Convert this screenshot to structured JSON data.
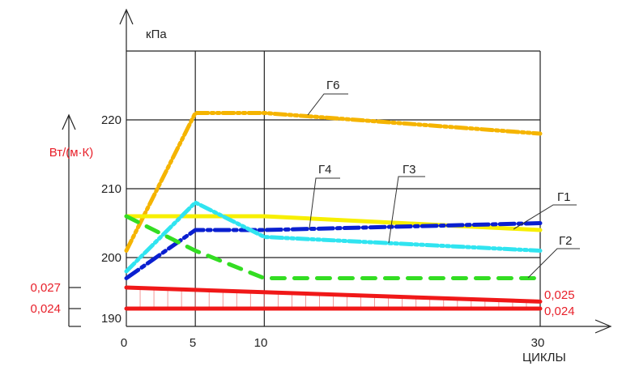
{
  "chart_data": {
    "type": "line",
    "xlabel": "ЦИКЛЫ",
    "ylabel": "кПа",
    "y2label": "Вт/(м·К)",
    "x_ticks": [
      "0",
      "5",
      "10",
      "30"
    ],
    "y_ticks": [
      "190",
      "200",
      "210",
      "220"
    ],
    "y2_ticks": [
      "0,027",
      "0,024"
    ],
    "xlim": [
      0,
      30
    ],
    "ylim": [
      190,
      230
    ],
    "grid": true,
    "series": [
      {
        "name": "Г6",
        "axis": "y",
        "color": "#f5b400",
        "style": "dash-dot-dot",
        "x": [
          0,
          5,
          10,
          30
        ],
        "y": [
          201,
          221,
          221,
          218
        ]
      },
      {
        "name": "Г1",
        "axis": "y",
        "color": "#f7ef00",
        "style": "solid",
        "x": [
          0,
          10,
          30
        ],
        "y": [
          206,
          206,
          204
        ]
      },
      {
        "name": "Г4",
        "axis": "y",
        "color": "#0a1fd0",
        "style": "dash-dot",
        "x": [
          0,
          5,
          10,
          30
        ],
        "y": [
          197,
          204,
          204,
          205
        ]
      },
      {
        "name": "Г3",
        "axis": "y",
        "color": "#30e4f0",
        "style": "dash-dot-dot",
        "x": [
          0,
          5,
          10,
          30
        ],
        "y": [
          198,
          208,
          203,
          201
        ]
      },
      {
        "name": "Г2",
        "axis": "y",
        "color": "#33dd22",
        "style": "dashed",
        "x": [
          0,
          5,
          10,
          30
        ],
        "y": [
          206,
          201,
          197,
          197
        ]
      }
    ],
    "secondary_series": [
      {
        "axis": "y2",
        "color": "#f01818",
        "x": [
          0,
          30
        ],
        "y": [
          0.027,
          0.025
        ],
        "end_label": "0,025"
      },
      {
        "axis": "y2",
        "color": "#f01818",
        "x": [
          0,
          30
        ],
        "y": [
          0.024,
          0.024
        ],
        "end_label": "0,024"
      }
    ]
  }
}
